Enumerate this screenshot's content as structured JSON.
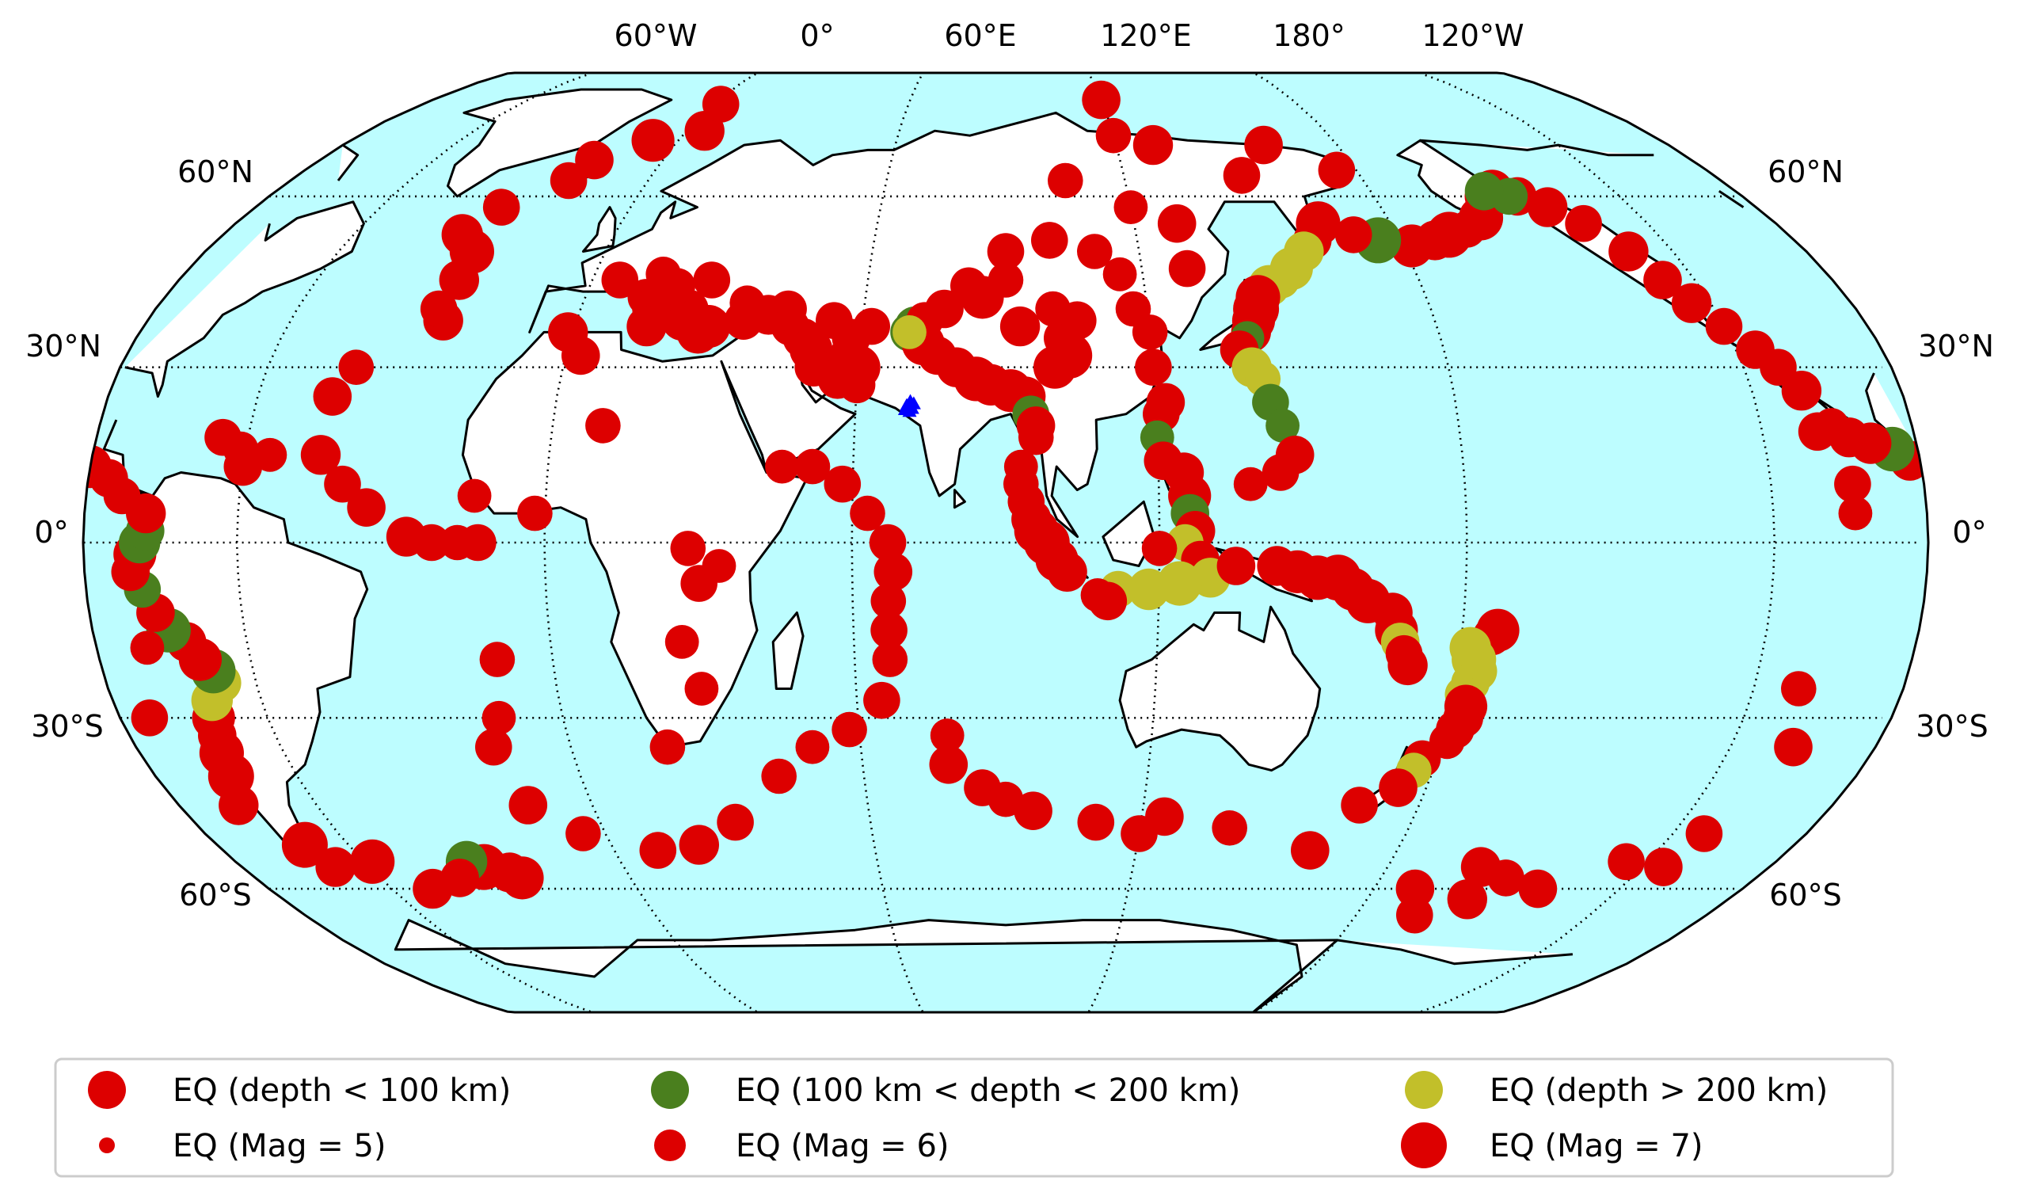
{
  "map": {
    "projection": "Robinson",
    "central_longitude": "90°E",
    "ocean_color": "#bdfdff",
    "land_color": "#ffffff",
    "coast_color": "#000000",
    "grid_style": "dotted",
    "top_longitude_labels": [
      "60°W",
      "0°",
      "60°E",
      "120°E",
      "180°",
      "120°W"
    ],
    "left_latitude_labels": [
      "60°N",
      "30°N",
      "0°",
      "30°S",
      "60°S"
    ],
    "right_latitude_labels": [
      "60°N",
      "30°N",
      "0°",
      "30°S",
      "60°S"
    ],
    "station_marker": {
      "symbol": "triangle",
      "color": "#0000ff",
      "location": "northwest India"
    }
  },
  "colors": {
    "shallow": "#dd0000",
    "intermediate": "#4a7f1e",
    "deep": "#c2bf2a"
  },
  "legend": {
    "entries": [
      {
        "label": "EQ (depth < 100 km)",
        "color": "#dd0000",
        "size": "medium"
      },
      {
        "label": "EQ (100 km < depth < 200 km)",
        "color": "#4a7f1e",
        "size": "medium"
      },
      {
        "label": "EQ (depth > 200 km)",
        "color": "#c2bf2a",
        "size": "medium"
      },
      {
        "label": "EQ (Mag = 5)",
        "color": "#dd0000",
        "size": "small"
      },
      {
        "label": "EQ (Mag = 6)",
        "color": "#dd0000",
        "size": "medium"
      },
      {
        "label": "EQ (Mag = 7)",
        "color": "#dd0000",
        "size": "large"
      }
    ]
  }
}
